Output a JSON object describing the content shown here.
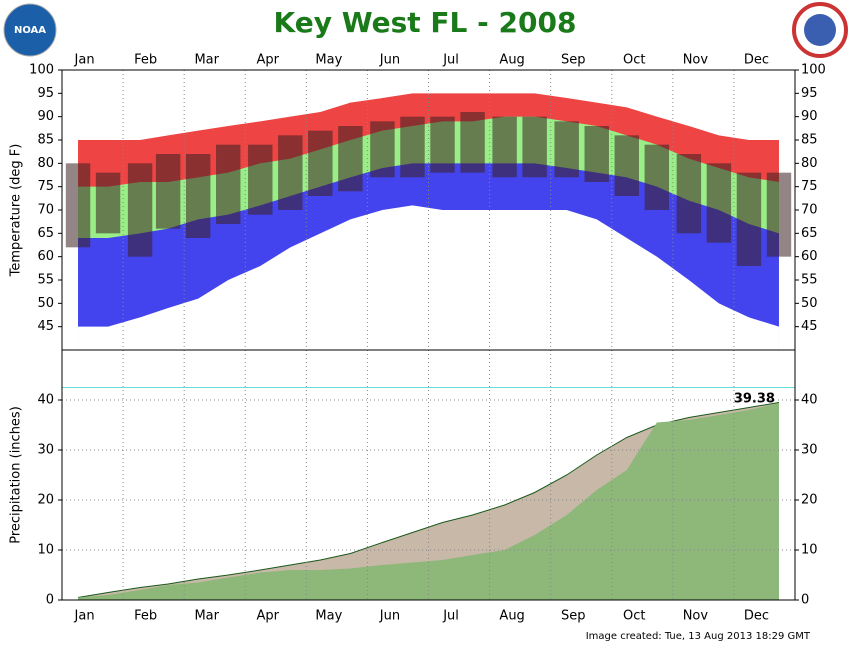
{
  "title": "Key West FL - 2008",
  "footer": "Image created: Tue, 13 Aug 2013 18:29 GMT",
  "logo_left": "NOAA",
  "categories": [
    "Jan",
    "Feb",
    "Mar",
    "Apr",
    "May",
    "Jun",
    "Jul",
    "Aug",
    "Sep",
    "Oct",
    "Nov",
    "Dec"
  ],
  "xlim": [
    0,
    366
  ],
  "chart_data": [
    {
      "type": "range",
      "ylabel": "Temperature (deg F)",
      "ylim": [
        40,
        100
      ],
      "yticks": [
        45,
        50,
        55,
        60,
        65,
        70,
        75,
        80,
        85,
        90,
        95,
        100
      ],
      "x": [
        8,
        23,
        39,
        53,
        68,
        83,
        99,
        114,
        129,
        144,
        160,
        175,
        190,
        205,
        221,
        236,
        252,
        267,
        282,
        297,
        313,
        328,
        343,
        358
      ],
      "series": [
        {
          "color": "#ee4444",
          "values": [
            85,
            85,
            85,
            86,
            87,
            88,
            89,
            90,
            91,
            93,
            94,
            95,
            95,
            95,
            95,
            95,
            94,
            93,
            92,
            90,
            88,
            86,
            85,
            85
          ]
        },
        {
          "color": "#99ee88",
          "values": [
            75,
            75,
            76,
            76,
            77,
            78,
            80,
            81,
            83,
            85,
            87,
            88,
            89,
            89,
            90,
            90,
            89,
            88,
            86,
            84,
            81,
            79,
            77,
            76
          ]
        },
        {
          "color": "#4444ee",
          "values": [
            64,
            64,
            65,
            66,
            68,
            69,
            71,
            73,
            75,
            77,
            79,
            80,
            80,
            80,
            80,
            80,
            79,
            78,
            77,
            75,
            72,
            70,
            67,
            65
          ]
        },
        {
          "color": "#ffffff",
          "values": [
            45,
            45,
            47,
            49,
            51,
            55,
            58,
            62,
            65,
            68,
            70,
            71,
            70,
            70,
            70,
            70,
            70,
            68,
            64,
            60,
            55,
            50,
            47,
            45
          ]
        }
      ],
      "observed": {
        "color": "#3a2020",
        "high": [
          80,
          78,
          80,
          82,
          82,
          84,
          84,
          86,
          87,
          88,
          89,
          90,
          90,
          91,
          90,
          90,
          89,
          88,
          86,
          84,
          82,
          80,
          78,
          78
        ],
        "low": [
          62,
          65,
          60,
          66,
          64,
          67,
          69,
          70,
          73,
          74,
          77,
          77,
          78,
          78,
          77,
          77,
          77,
          76,
          73,
          70,
          65,
          63,
          58,
          60
        ]
      }
    },
    {
      "type": "area",
      "ylabel": "Precipitation (inches)",
      "ylim": [
        0,
        50
      ],
      "yticks": [
        0,
        10,
        20,
        30,
        40
      ],
      "grid": true,
      "reference_line": {
        "value": 42.5,
        "color": "#66dddd"
      },
      "x": [
        8,
        23,
        39,
        53,
        68,
        83,
        99,
        114,
        129,
        144,
        160,
        175,
        190,
        205,
        221,
        236,
        252,
        267,
        282,
        297,
        313,
        328,
        343,
        358
      ],
      "series": [
        {
          "color": "#c8b8a8",
          "line_color": "#1a5a1a",
          "values": [
            0.5,
            1.5,
            2.5,
            3.2,
            4.2,
            5,
            6,
            7,
            8,
            9.3,
            11.5,
            13.5,
            15.5,
            17,
            19,
            21.5,
            25,
            29,
            32.5,
            35,
            36.5,
            37.5,
            38.5,
            39.5
          ]
        },
        {
          "color": "#8db87a",
          "values": [
            0.5,
            1,
            2,
            3,
            3.5,
            4.5,
            5.5,
            6,
            6,
            6.3,
            7,
            7.5,
            8,
            9,
            10,
            13,
            17,
            22,
            26,
            35.5,
            36,
            37,
            38,
            39.38
          ]
        }
      ],
      "annotation": "39.38"
    }
  ]
}
